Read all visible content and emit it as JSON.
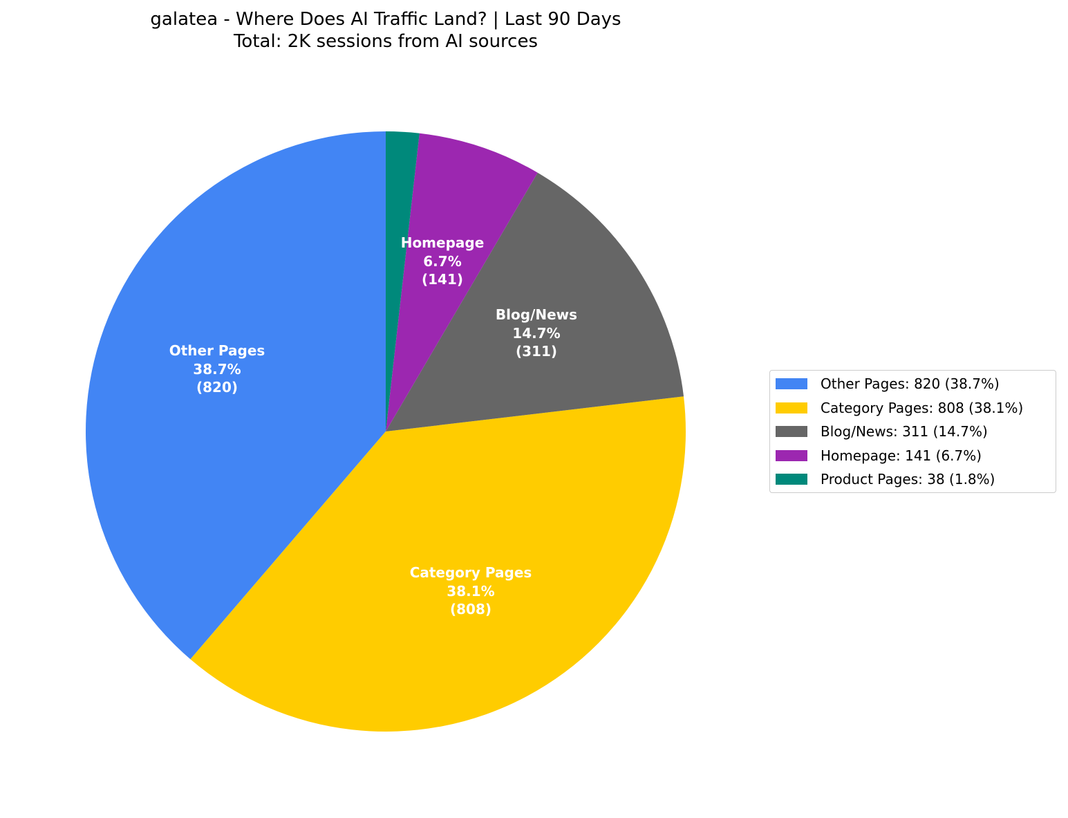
{
  "title": {
    "line1": "galatea - Where Does AI Traffic Land? | Last 90 Days",
    "line2": "Total: 2K sessions from AI sources"
  },
  "slices": [
    {
      "name": "Other Pages",
      "pct": "38.7%",
      "count": "(820)",
      "legend": "Other Pages: 820 (38.7%)",
      "color": "#4285F4"
    },
    {
      "name": "Category Pages",
      "pct": "38.1%",
      "count": "(808)",
      "legend": "Category Pages: 808 (38.1%)",
      "color": "#FFCC00"
    },
    {
      "name": "Blog/News",
      "pct": "14.7%",
      "count": "(311)",
      "legend": "Blog/News: 311 (14.7%)",
      "color": "#666666"
    },
    {
      "name": "Homepage",
      "pct": "6.7%",
      "count": "(141)",
      "legend": "Homepage: 141 (6.7%)",
      "color": "#9C27B0"
    },
    {
      "name": "Product Pages",
      "pct": "",
      "count": "",
      "legend": "Product Pages: 38 (1.8%)",
      "color": "#00897B"
    }
  ],
  "chart_data": {
    "type": "pie",
    "title": "galatea - Where Does AI Traffic Land? | Last 90 Days\nTotal: 2K sessions from AI sources",
    "categories": [
      "Other Pages",
      "Category Pages",
      "Blog/News",
      "Homepage",
      "Product Pages"
    ],
    "values": [
      820,
      808,
      311,
      141,
      38
    ],
    "percentages": [
      38.7,
      38.1,
      14.7,
      6.7,
      1.8
    ],
    "colors": [
      "#4285F4",
      "#FFCC00",
      "#666666",
      "#9C27B0",
      "#00897B"
    ],
    "start_angle": 90,
    "direction": "counterclockwise",
    "legend_position": "right",
    "legend_entries": [
      "Other Pages: 820 (38.7%)",
      "Category Pages: 808 (38.1%)",
      "Blog/News: 311 (14.7%)",
      "Homepage: 141 (6.7%)",
      "Product Pages: 38 (1.8%)"
    ],
    "slice_labels": [
      "Other Pages\n38.7%\n(820)",
      "Category Pages\n38.1%\n(808)",
      "Blog/News\n14.7%\n(311)",
      "Homepage\n6.7%\n(141)"
    ]
  }
}
